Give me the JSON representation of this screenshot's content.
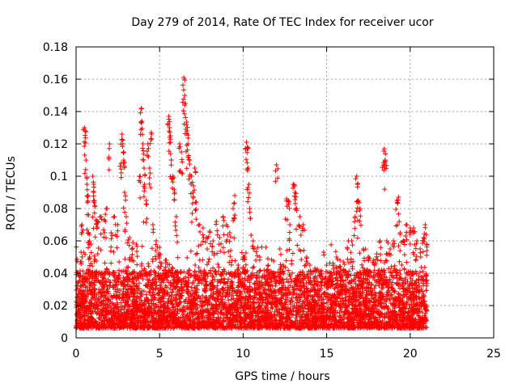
{
  "chart_data": {
    "type": "scatter",
    "title": "Day 279 of 2014, Rate Of TEC Index for receiver ucor",
    "xlabel": "GPS time / hours",
    "ylabel": "ROTI / TECUs",
    "xlim": [
      0,
      25
    ],
    "ylim": [
      0,
      0.18
    ],
    "x_ticks": [
      "0",
      "5",
      "10",
      "15",
      "20",
      "25"
    ],
    "y_ticks": [
      "0",
      "0.02",
      "0.04",
      "0.06",
      "0.08",
      "0.1",
      "0.12",
      "0.14",
      "0.16",
      "0.18"
    ],
    "grid": true,
    "marker": "plus",
    "color": "#ff0000",
    "x_range_of_data": [
      0,
      21
    ],
    "series": [
      {
        "name": "",
        "points": [
          [
            0.3,
            0.053
          ],
          [
            0.35,
            0.07
          ],
          [
            0.5,
            0.13
          ],
          [
            0.55,
            0.128
          ],
          [
            0.6,
            0.11
          ],
          [
            0.65,
            0.095
          ],
          [
            0.7,
            0.088
          ],
          [
            0.75,
            0.065
          ],
          [
            0.8,
            0.06
          ],
          [
            0.9,
            0.058
          ],
          [
            1.0,
            0.1
          ],
          [
            1.05,
            0.09
          ],
          [
            1.1,
            0.085
          ],
          [
            1.2,
            0.073
          ],
          [
            1.3,
            0.072
          ],
          [
            1.5,
            0.075
          ],
          [
            1.7,
            0.073
          ],
          [
            1.8,
            0.08
          ],
          [
            2.0,
            0.12
          ],
          [
            2.1,
            0.065
          ],
          [
            2.3,
            0.075
          ],
          [
            2.5,
            0.07
          ],
          [
            2.7,
            0.108
          ],
          [
            2.75,
            0.126
          ],
          [
            2.8,
            0.12
          ],
          [
            2.85,
            0.115
          ],
          [
            2.9,
            0.09
          ],
          [
            3.0,
            0.075
          ],
          [
            3.2,
            0.062
          ],
          [
            3.4,
            0.059
          ],
          [
            3.6,
            0.058
          ],
          [
            3.8,
            0.1
          ],
          [
            3.9,
            0.142
          ],
          [
            3.95,
            0.134
          ],
          [
            4.0,
            0.12
          ],
          [
            4.05,
            0.11
          ],
          [
            4.1,
            0.095
          ],
          [
            4.2,
            0.085
          ],
          [
            4.3,
            0.12
          ],
          [
            4.4,
            0.105
          ],
          [
            4.5,
            0.127
          ],
          [
            4.6,
            0.07
          ],
          [
            4.8,
            0.06
          ],
          [
            5.0,
            0.056
          ],
          [
            5.2,
            0.04
          ],
          [
            5.4,
            0.048
          ],
          [
            5.55,
            0.137
          ],
          [
            5.6,
            0.13
          ],
          [
            5.65,
            0.125
          ],
          [
            5.7,
            0.11
          ],
          [
            5.8,
            0.1
          ],
          [
            5.9,
            0.09
          ],
          [
            6.0,
            0.075
          ],
          [
            6.2,
            0.12
          ],
          [
            6.3,
            0.115
          ],
          [
            6.45,
            0.161
          ],
          [
            6.5,
            0.15
          ],
          [
            6.55,
            0.145
          ],
          [
            6.6,
            0.132
          ],
          [
            6.65,
            0.128
          ],
          [
            6.7,
            0.12
          ],
          [
            6.8,
            0.11
          ],
          [
            6.9,
            0.1
          ],
          [
            7.0,
            0.09
          ],
          [
            7.1,
            0.105
          ],
          [
            7.2,
            0.084
          ],
          [
            7.4,
            0.07
          ],
          [
            7.6,
            0.068
          ],
          [
            7.8,
            0.062
          ],
          [
            8.0,
            0.066
          ],
          [
            8.2,
            0.06
          ],
          [
            8.4,
            0.072
          ],
          [
            8.6,
            0.062
          ],
          [
            8.8,
            0.075
          ],
          [
            9.0,
            0.07
          ],
          [
            9.2,
            0.065
          ],
          [
            9.4,
            0.08
          ],
          [
            9.5,
            0.088
          ],
          [
            9.7,
            0.045
          ],
          [
            10.0,
            0.05
          ],
          [
            10.1,
            0.05
          ],
          [
            10.2,
            0.121
          ],
          [
            10.25,
            0.118
          ],
          [
            10.3,
            0.105
          ],
          [
            10.35,
            0.095
          ],
          [
            10.4,
            0.08
          ],
          [
            10.6,
            0.06
          ],
          [
            11.0,
            0.05
          ],
          [
            11.5,
            0.045
          ],
          [
            12.0,
            0.107
          ],
          [
            12.2,
            0.055
          ],
          [
            12.4,
            0.045
          ],
          [
            12.6,
            0.086
          ],
          [
            12.7,
            0.085
          ],
          [
            12.8,
            0.07
          ],
          [
            13.0,
            0.095
          ],
          [
            13.1,
            0.09
          ],
          [
            13.2,
            0.08
          ],
          [
            13.4,
            0.075
          ],
          [
            13.6,
            0.07
          ],
          [
            13.8,
            0.05
          ],
          [
            14.0,
            0.045
          ],
          [
            14.3,
            0.043
          ],
          [
            14.6,
            0.04
          ],
          [
            15.0,
            0.045
          ],
          [
            15.2,
            0.04
          ],
          [
            15.4,
            0.045
          ],
          [
            15.6,
            0.05
          ],
          [
            15.8,
            0.048
          ],
          [
            16.0,
            0.047
          ],
          [
            16.3,
            0.06
          ],
          [
            16.5,
            0.06
          ],
          [
            16.7,
            0.075
          ],
          [
            16.8,
            0.1
          ],
          [
            16.85,
            0.095
          ],
          [
            16.9,
            0.085
          ],
          [
            17.0,
            0.08
          ],
          [
            17.2,
            0.055
          ],
          [
            17.5,
            0.05
          ],
          [
            17.8,
            0.048
          ],
          [
            18.0,
            0.052
          ],
          [
            18.2,
            0.06
          ],
          [
            18.4,
            0.107
          ],
          [
            18.45,
            0.117
          ],
          [
            18.5,
            0.11
          ],
          [
            18.6,
            0.06
          ],
          [
            18.8,
            0.055
          ],
          [
            19.0,
            0.06
          ],
          [
            19.2,
            0.085
          ],
          [
            19.3,
            0.087
          ],
          [
            19.4,
            0.065
          ],
          [
            19.6,
            0.06
          ],
          [
            19.8,
            0.07
          ],
          [
            20.0,
            0.068
          ],
          [
            20.2,
            0.068
          ],
          [
            20.4,
            0.06
          ],
          [
            20.6,
            0.055
          ],
          [
            20.8,
            0.062
          ],
          [
            20.9,
            0.07
          ],
          [
            21.0,
            0.058
          ]
        ]
      }
    ]
  }
}
